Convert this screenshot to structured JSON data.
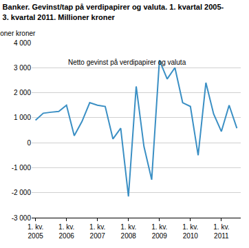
{
  "chart_data": {
    "type": "line",
    "title": "Banker. Gevinst/tap på verdipapirer og valuta. 1. kvartal 2005-\n3. kvartal 2011. Millioner kroner",
    "y_label": "Millioner kroner",
    "annotation": "Netto gevinst på verdipapirer og valuta",
    "categories": [
      "1. kv.\n2005",
      null,
      null,
      null,
      "1. kv.\n2006",
      null,
      null,
      null,
      "1. kv.\n2007",
      null,
      null,
      null,
      "1. kv.\n2008",
      null,
      null,
      null,
      "1. kv.\n2009",
      null,
      null,
      null,
      "1. kv.\n2010",
      null,
      null,
      null,
      "1. kv.\n2011",
      null,
      null
    ],
    "values": [
      900,
      1180,
      1220,
      1250,
      1500,
      280,
      850,
      1600,
      1500,
      1450,
      150,
      580,
      -2150,
      2250,
      -150,
      -1480,
      3300,
      2550,
      3000,
      1600,
      1450,
      -500,
      2400,
      1150,
      450,
      1500,
      580
    ],
    "color": "#3a8fc4",
    "ylim": [
      -3000,
      4000
    ],
    "yticks": [
      {
        "value": -3000,
        "label": "-3 000"
      },
      {
        "value": -2000,
        "label": "-2 000"
      },
      {
        "value": -1000,
        "label": "-1 000"
      },
      0,
      {
        "value": 1000,
        "label": "1 000"
      },
      {
        "value": 2000,
        "label": "2 000"
      },
      {
        "value": 3000,
        "label": "3 000"
      },
      {
        "value": 4000,
        "label": "4 000"
      }
    ],
    "grid": true
  }
}
